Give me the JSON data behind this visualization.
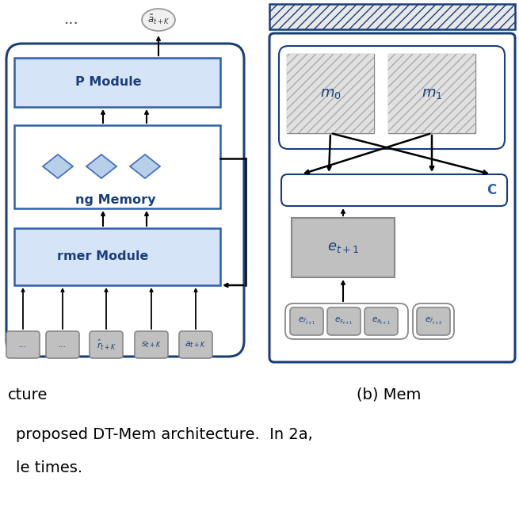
{
  "bg_color": "#ffffff",
  "blue_dark": "#1a3e7a",
  "blue_med": "#2f5faa",
  "blue_light_fill": "#d6e4f7",
  "gray_fill": "#c0c0c0",
  "gray_edge": "#888888",
  "diamond_fill": "#b8cfe8",
  "diamond_edge": "#4472c4",
  "caption1": "proposed DT-Mem architecture.  In 2a,",
  "caption2": "le times.",
  "label_a": "cture",
  "label_b": "(b) Mem",
  "left_input_labels": [
    "...",
    "...",
    "$\\hat{r}_{t+K}$",
    "$s_{t+K}$",
    "$a_{t+K}$"
  ],
  "right_bottom_labels": [
    "$e_{\\hat{r}_{t+1}}$",
    "$e_{s_{t+1}}$",
    "$e_{a_{t+1}}$",
    "$e_{\\hat{r}_{t+2}}$"
  ]
}
